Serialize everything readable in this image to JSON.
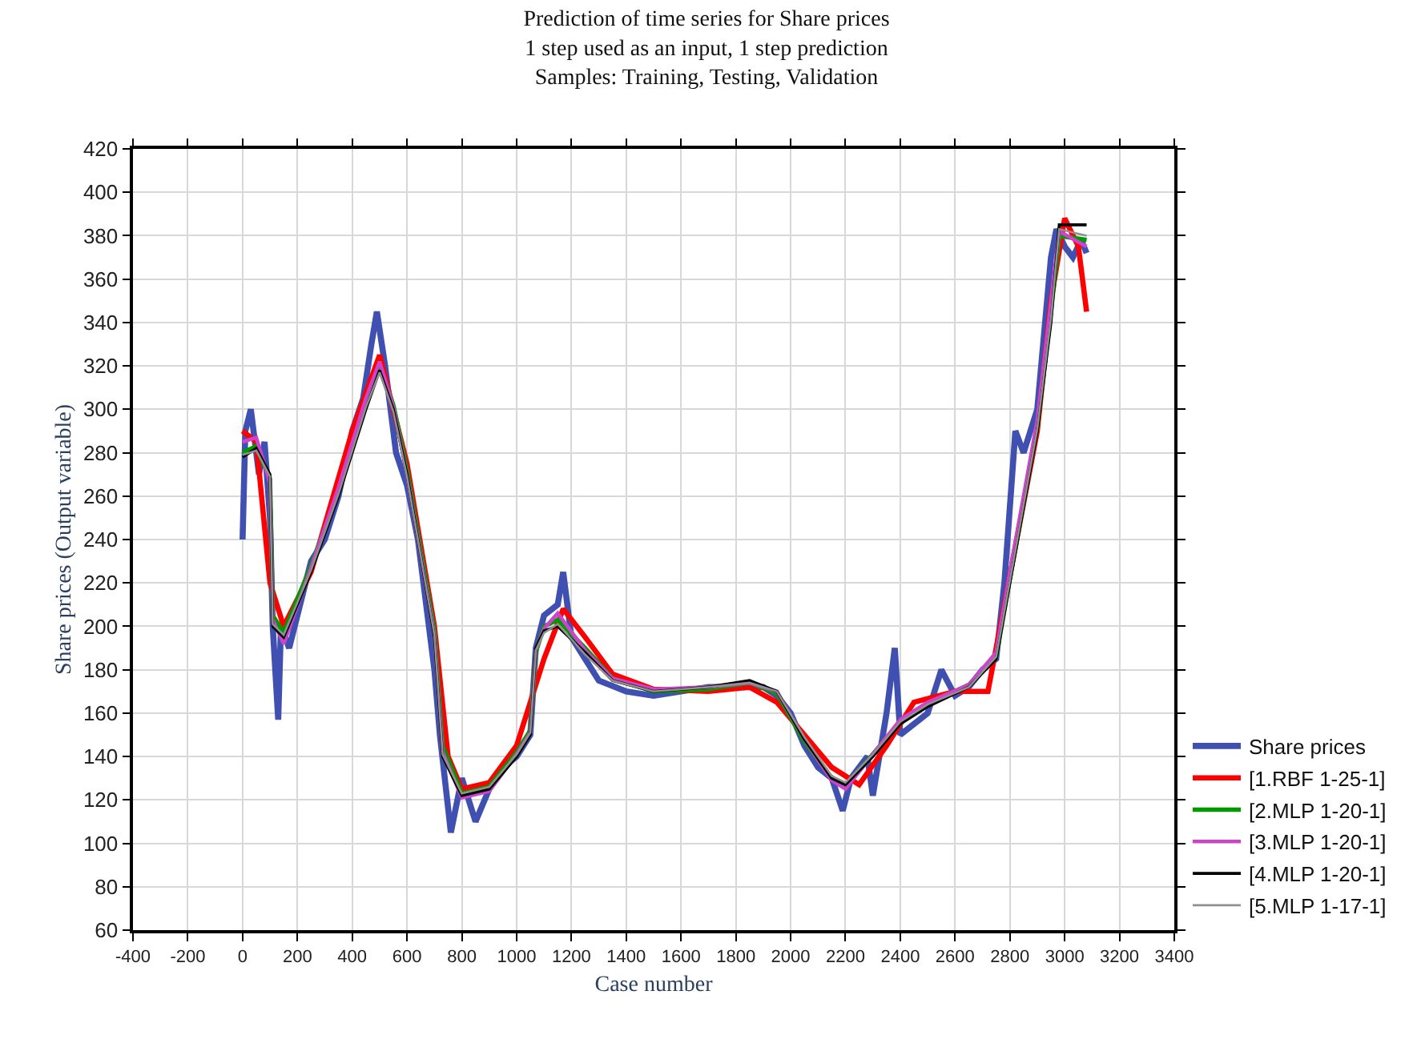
{
  "chart_data": {
    "type": "line",
    "title": "Prediction of time series for Share prices\n1 step used as an input, 1 step prediction\nSamples: Training, Testing, Validation",
    "xlabel": "Case number",
    "ylabel": "Share prices (Output variable)",
    "xlim": [
      -400,
      3400
    ],
    "xticks": [
      -400,
      -200,
      0,
      200,
      400,
      600,
      800,
      1000,
      1200,
      1400,
      1600,
      1800,
      2000,
      2200,
      2400,
      2600,
      2800,
      3000,
      3200,
      3400
    ],
    "ylim": [
      60,
      420
    ],
    "yticks": [
      60,
      80,
      100,
      120,
      140,
      160,
      180,
      200,
      220,
      240,
      260,
      280,
      300,
      320,
      340,
      360,
      380,
      400,
      420
    ],
    "grid": true,
    "legend": "bottom right",
    "marker": "none",
    "line_style": "solid",
    "series": [
      {
        "name": "Share prices",
        "color": "#4050b0",
        "x": [
          0,
          10,
          30,
          60,
          80,
          100,
          110,
          130,
          140,
          170,
          200,
          250,
          300,
          350,
          400,
          440,
          470,
          490,
          520,
          560,
          600,
          640,
          700,
          720,
          760,
          800,
          850,
          900,
          950,
          1000,
          1050,
          1070,
          1100,
          1150,
          1170,
          1200,
          1250,
          1300,
          1400,
          1500,
          1600,
          1700,
          1800,
          1900,
          1950,
          2000,
          2050,
          2100,
          2150,
          2190,
          2220,
          2280,
          2300,
          2350,
          2380,
          2400,
          2450,
          2500,
          2550,
          2600,
          2650,
          2700,
          2750,
          2780,
          2820,
          2850,
          2900,
          2950,
          2970,
          3000,
          3030,
          3060,
          3080
        ],
        "values": [
          240,
          290,
          300,
          270,
          285,
          250,
          200,
          157,
          200,
          190,
          205,
          230,
          240,
          260,
          290,
          305,
          330,
          345,
          320,
          280,
          265,
          240,
          180,
          150,
          105,
          130,
          110,
          125,
          135,
          140,
          150,
          190,
          205,
          210,
          225,
          195,
          185,
          175,
          170,
          168,
          170,
          172,
          172,
          172,
          168,
          160,
          145,
          135,
          130,
          115,
          130,
          140,
          122,
          160,
          190,
          150,
          155,
          160,
          180,
          168,
          172,
          180,
          185,
          220,
          290,
          280,
          300,
          370,
          383,
          375,
          370,
          378,
          372
        ]
      },
      {
        "name": "[1.RBF 1-25-1]",
        "color": "#ff0000",
        "x": [
          0,
          50,
          100,
          150,
          250,
          400,
          500,
          600,
          700,
          750,
          800,
          900,
          1000,
          1100,
          1170,
          1250,
          1350,
          1500,
          1700,
          1850,
          1950,
          2050,
          2150,
          2250,
          2350,
          2450,
          2600,
          2720,
          2780,
          2900,
          2950,
          3000,
          3050,
          3080
        ],
        "values": [
          290,
          285,
          220,
          200,
          225,
          290,
          325,
          275,
          200,
          140,
          125,
          128,
          145,
          185,
          208,
          195,
          178,
          171,
          170,
          172,
          165,
          150,
          135,
          127,
          145,
          165,
          170,
          170,
          210,
          290,
          350,
          388,
          375,
          345
        ]
      },
      {
        "name": "[2.MLP 1-20-1]",
        "color": "#009900",
        "x": [
          0,
          50,
          100,
          110,
          150,
          250,
          350,
          450,
          500,
          550,
          600,
          700,
          730,
          800,
          900,
          1000,
          1050,
          1070,
          1100,
          1150,
          1250,
          1350,
          1500,
          1700,
          1850,
          1950,
          2050,
          2150,
          2200,
          2300,
          2400,
          2500,
          2650,
          2750,
          2800,
          2900,
          2950,
          2980,
          3080
        ],
        "values": [
          280,
          283,
          268,
          205,
          197,
          228,
          262,
          303,
          320,
          302,
          272,
          198,
          145,
          123,
          126,
          142,
          152,
          188,
          200,
          203,
          190,
          176,
          170,
          171,
          174,
          169,
          147,
          130,
          126,
          141,
          156,
          164,
          173,
          186,
          222,
          292,
          345,
          380,
          378
        ]
      },
      {
        "name": "[3.MLP 1-20-1]",
        "color": "#cc44cc",
        "x": [
          0,
          50,
          100,
          110,
          150,
          250,
          350,
          450,
          500,
          550,
          600,
          700,
          730,
          800,
          900,
          1000,
          1050,
          1070,
          1100,
          1150,
          1250,
          1350,
          1500,
          1700,
          1850,
          1950,
          2050,
          2150,
          2200,
          2300,
          2400,
          2500,
          2650,
          2750,
          2800,
          2900,
          2950,
          2980,
          3080
        ],
        "values": [
          285,
          287,
          266,
          203,
          192,
          227,
          264,
          305,
          322,
          301,
          270,
          196,
          142,
          121,
          124,
          141,
          151,
          189,
          199,
          206,
          189,
          176,
          171,
          172,
          174,
          170,
          148,
          129,
          125,
          141,
          157,
          165,
          173,
          188,
          225,
          295,
          350,
          382,
          375
        ]
      },
      {
        "name": "[4.MLP 1-20-1]",
        "color": "#000000",
        "x": [
          0,
          50,
          100,
          110,
          150,
          250,
          350,
          450,
          500,
          550,
          600,
          700,
          730,
          800,
          900,
          1000,
          1050,
          1070,
          1100,
          1150,
          1250,
          1350,
          1500,
          1700,
          1850,
          1950,
          2050,
          2150,
          2200,
          2300,
          2400,
          2500,
          2650,
          2750,
          2800,
          2900,
          2950,
          2980,
          3080
        ],
        "values": [
          278,
          282,
          270,
          200,
          195,
          225,
          260,
          300,
          318,
          300,
          270,
          195,
          140,
          122,
          125,
          140,
          150,
          190,
          198,
          200,
          188,
          175,
          170,
          172,
          175,
          170,
          148,
          130,
          127,
          140,
          155,
          163,
          172,
          185,
          220,
          290,
          340,
          385,
          385
        ]
      },
      {
        "name": "[5.MLP 1-17-1]",
        "color": "#909090",
        "x": [
          0,
          50,
          100,
          110,
          150,
          250,
          350,
          450,
          500,
          550,
          600,
          700,
          730,
          800,
          900,
          1000,
          1050,
          1070,
          1100,
          1150,
          1250,
          1350,
          1500,
          1700,
          1850,
          1950,
          2050,
          2150,
          2200,
          2300,
          2400,
          2500,
          2650,
          2750,
          2800,
          2900,
          2950,
          2980,
          3080
        ],
        "values": [
          279,
          281,
          269,
          201,
          196,
          226,
          261,
          301,
          317,
          299,
          269,
          196,
          141,
          123,
          126,
          141,
          151,
          189,
          197,
          201,
          187,
          175,
          170,
          172,
          174,
          170,
          149,
          131,
          128,
          141,
          156,
          164,
          172,
          186,
          221,
          291,
          342,
          383,
          380
        ]
      }
    ]
  }
}
